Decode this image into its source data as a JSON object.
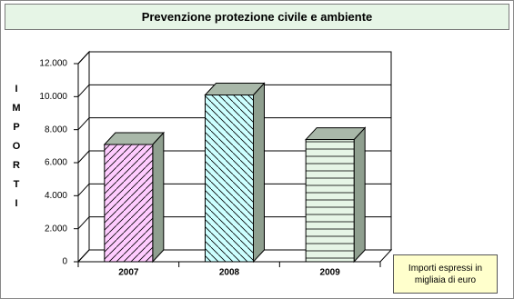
{
  "chart_data": {
    "type": "bar3d",
    "title": "Prevenzione protezione civile e ambiente",
    "y_label": "IMPORTI",
    "categories": [
      "2007",
      "2008",
      "2009"
    ],
    "values": [
      7100,
      10100,
      7400
    ],
    "colors": [
      "#ffccff",
      "#ccffff",
      "#e6f5e6"
    ],
    "ylim": [
      0,
      12000
    ],
    "yticks": [
      0,
      {
        "value": 2000,
        "label": "2.000"
      },
      {
        "value": 4000,
        "label": "4.000"
      },
      {
        "value": 6000,
        "label": "6.000"
      },
      {
        "value": 8000,
        "label": "8.000"
      },
      {
        "value": 10000,
        "label": "10.000"
      },
      {
        "value": 12000,
        "label": "12.000"
      }
    ],
    "grid": true,
    "annotation": "Importi espressi in migliaia di euro"
  }
}
